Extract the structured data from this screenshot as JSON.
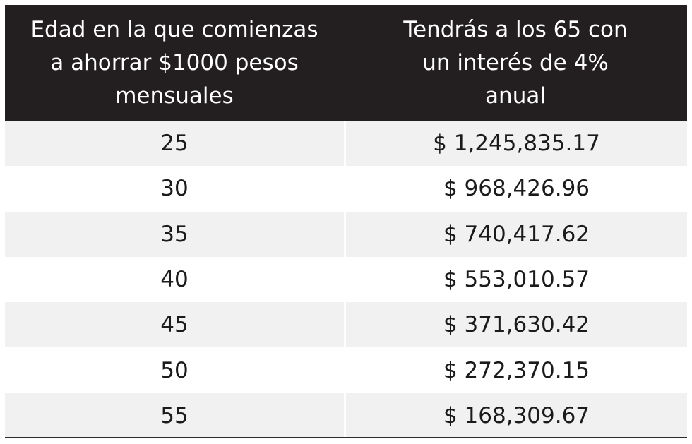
{
  "table": {
    "headers": [
      "Edad en la que comienzas a ahorrar $1000 pesos mensuales",
      "Tendrás a los 65 con un interés de 4% anual"
    ],
    "header_lines": [
      [
        "Edad en la que comienzas",
        "a ahorrar $1000 pesos",
        "mensuales"
      ],
      [
        "Tendrás a los 65 con",
        "un interés de 4%",
        "anual"
      ]
    ],
    "rows": [
      {
        "age": "25",
        "amount": "$ 1,245,835.17"
      },
      {
        "age": "30",
        "amount": "$ 968,426.96"
      },
      {
        "age": "35",
        "amount": "$ 740,417.62"
      },
      {
        "age": "40",
        "amount": "$ 553,010.57"
      },
      {
        "age": "45",
        "amount": "$ 371,630.42"
      },
      {
        "age": "50",
        "amount": "$ 272,370.15"
      },
      {
        "age": "55",
        "amount": "$ 168,309.67"
      }
    ]
  },
  "colors": {
    "header_bg": "#231f20",
    "header_text": "#ffffff",
    "row_alt_bg": "#f1f1f1",
    "text": "#1b1b1b"
  }
}
